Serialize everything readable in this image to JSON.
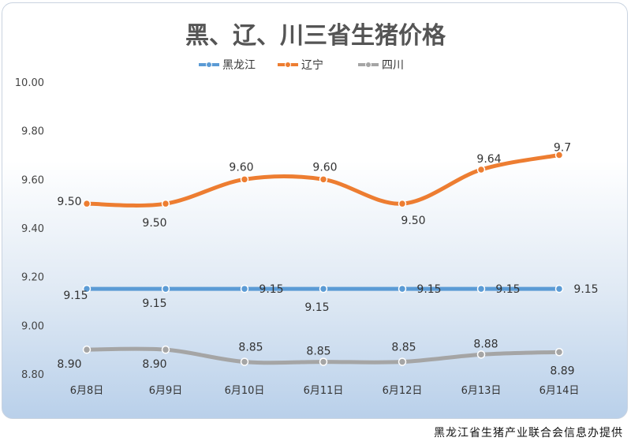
{
  "chart_data": {
    "type": "line",
    "title": "黑、辽、川三省生猪价格",
    "categories": [
      "6月8日",
      "6月9日",
      "6月10日",
      "6月11日",
      "6月12日",
      "6月13日",
      "6月14日"
    ],
    "ylim": [
      8.8,
      10.0
    ],
    "yticks": [
      "10.00",
      "9.80",
      "9.60",
      "9.40",
      "9.20",
      "9.00",
      "8.80"
    ],
    "legend_position": "top-center",
    "grid": false,
    "series": [
      {
        "name": "黑龙江",
        "color": "#5b9bd5",
        "values": [
          9.15,
          9.15,
          9.15,
          9.15,
          9.15,
          9.15,
          9.15
        ],
        "labels": [
          "9.15",
          "9.15",
          "9.15",
          "9.15",
          "9.15",
          "9.15",
          "9.15"
        ]
      },
      {
        "name": "辽宁",
        "color": "#ed7d31",
        "values": [
          9.5,
          9.5,
          9.6,
          9.6,
          9.5,
          9.64,
          9.7
        ],
        "labels": [
          "9.50",
          "9.50",
          "9.60",
          "9.60",
          "9.50",
          "9.64",
          "9.7"
        ]
      },
      {
        "name": "四川",
        "color": "#a5a5a5",
        "values": [
          8.9,
          8.9,
          8.85,
          8.85,
          8.85,
          8.88,
          8.89
        ],
        "labels": [
          "8.90",
          "8.90",
          "8.85",
          "8.85",
          "8.85",
          "8.88",
          "8.89"
        ]
      }
    ]
  },
  "footer": {
    "source": "黑龙江省生猪产业联合会信息办提供"
  }
}
